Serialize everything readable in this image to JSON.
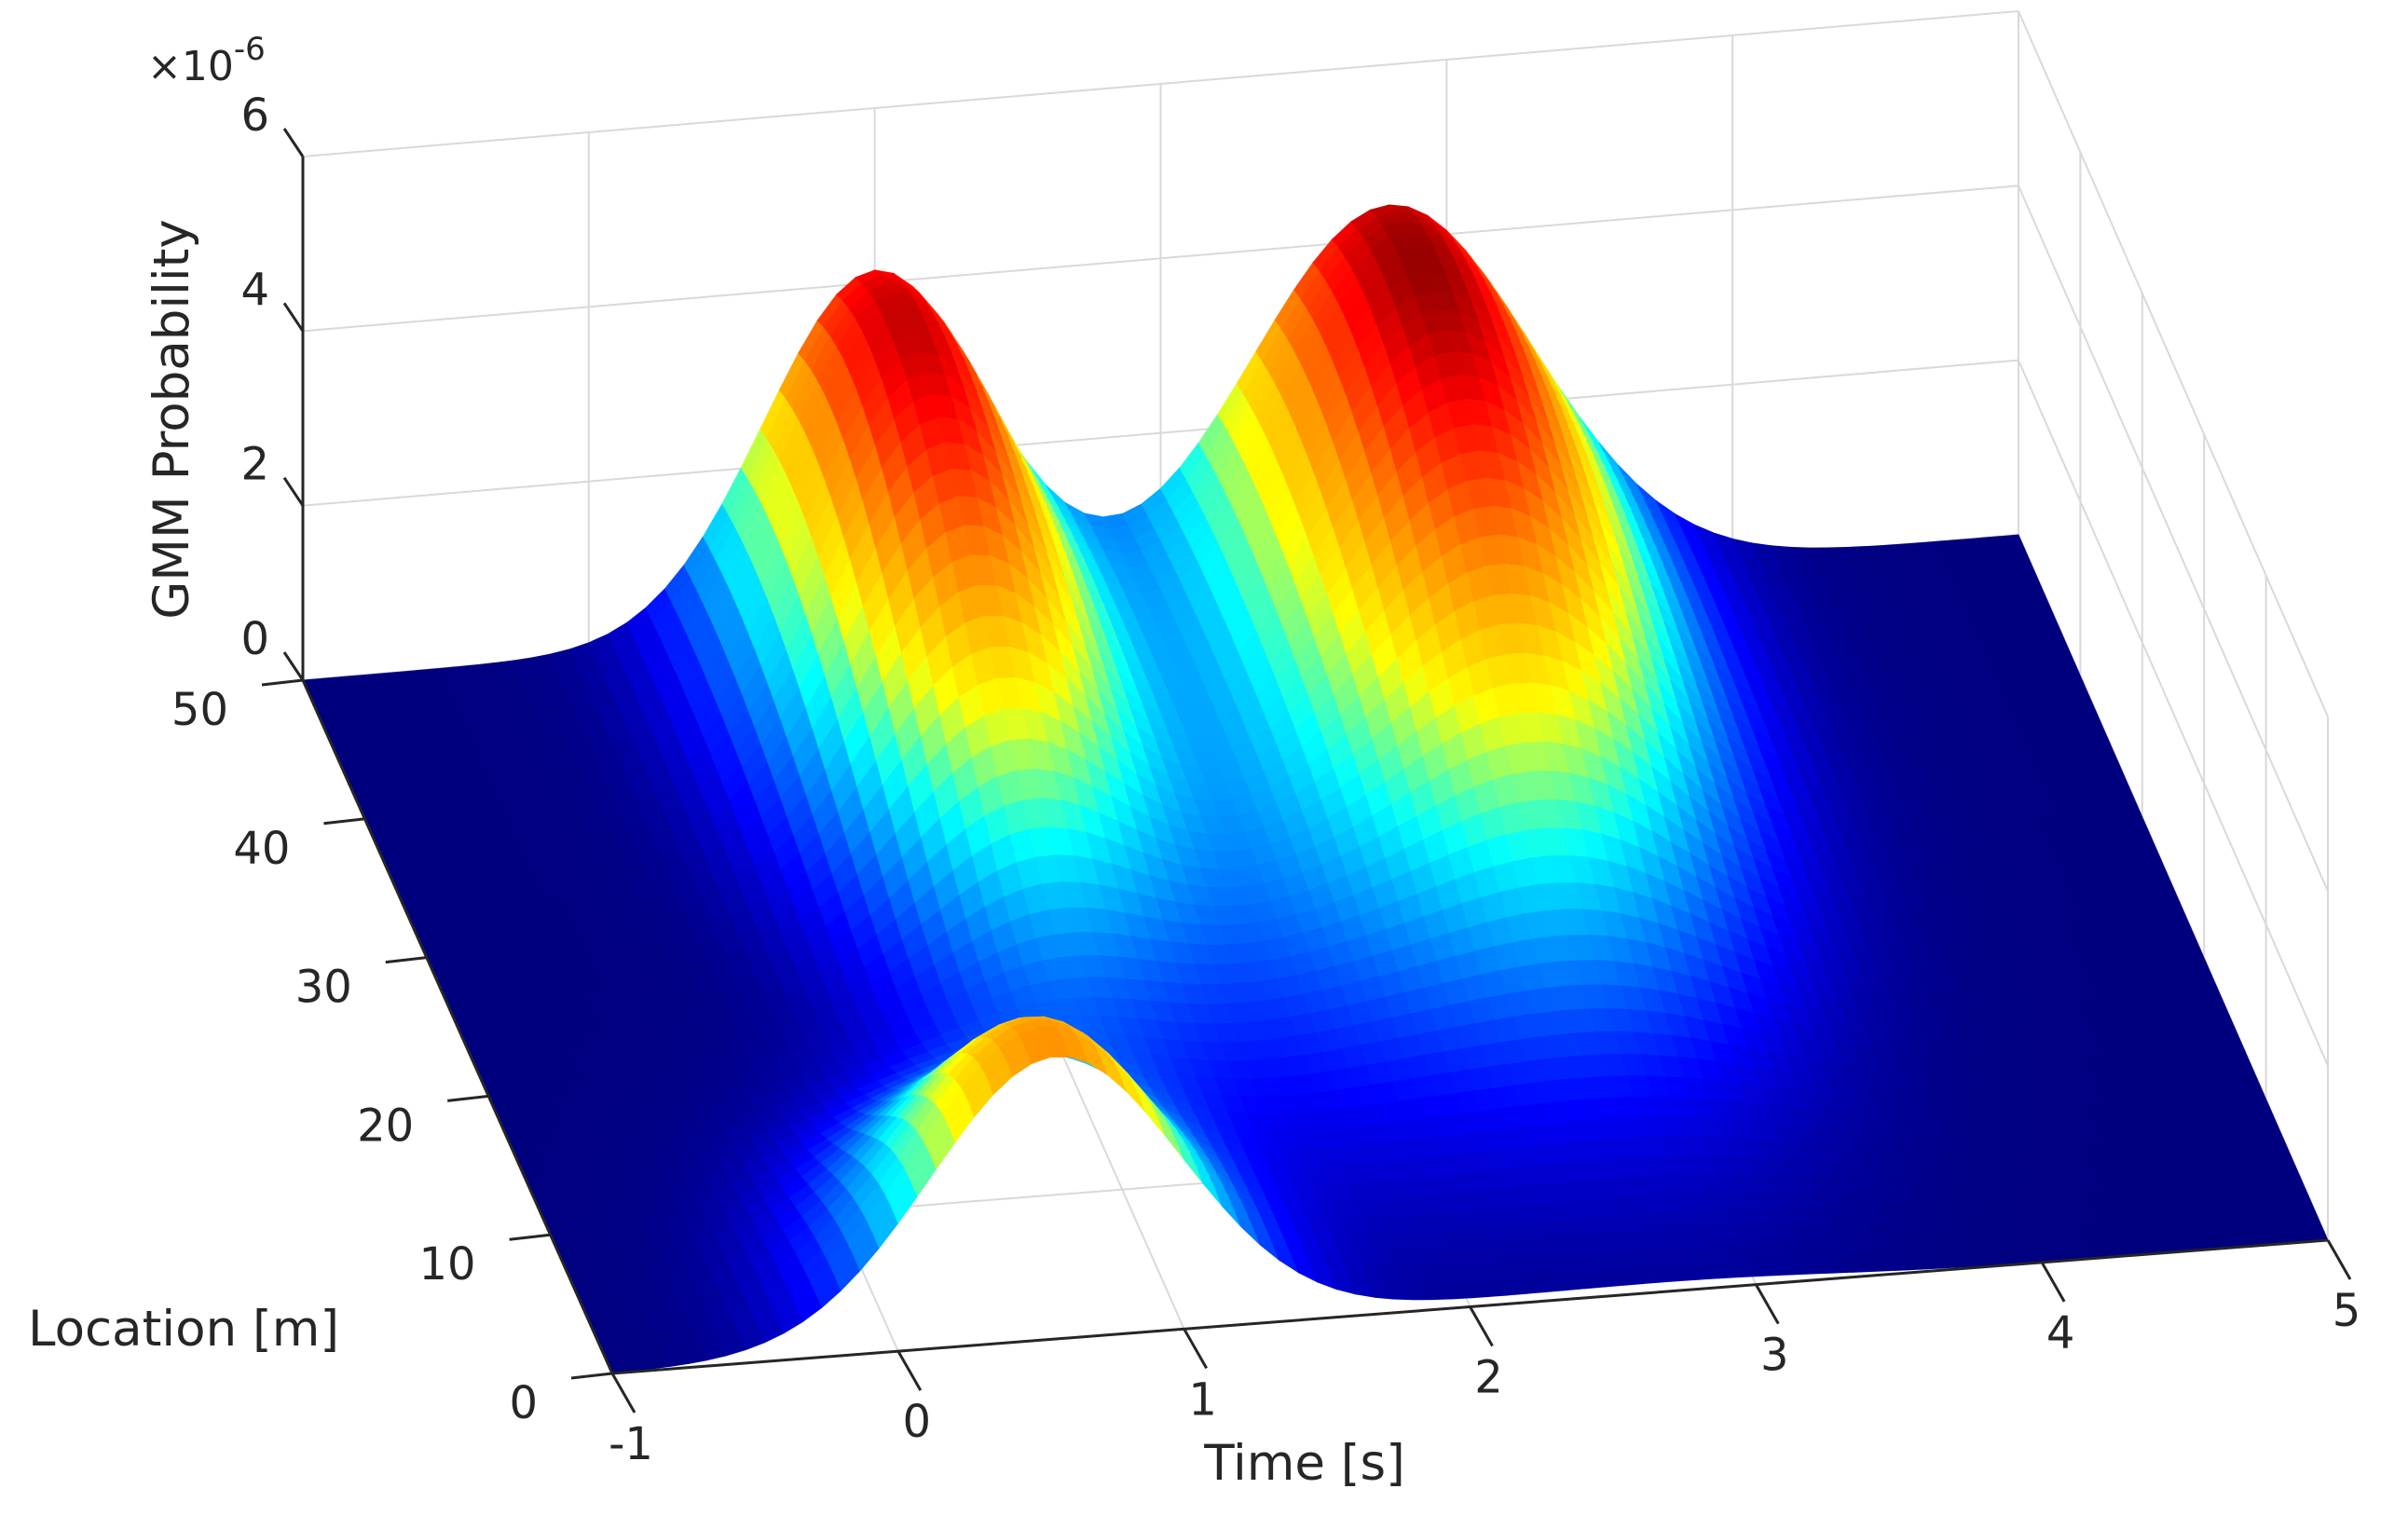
{
  "chart_data": {
    "type": "surface",
    "title": "",
    "xlabel": "Time [s]",
    "ylabel": "Location [m]",
    "zlabel": "GMM Probability",
    "z_exponent": "×10-6",
    "xlim": [
      -1,
      5
    ],
    "ylim": [
      0,
      50
    ],
    "zlim": [
      0,
      6
    ],
    "x_ticks": [
      "-1",
      "0",
      "1",
      "2",
      "3",
      "4",
      "5"
    ],
    "y_ticks": [
      "0",
      "10",
      "20",
      "30",
      "40",
      "50"
    ],
    "z_ticks": [
      "0",
      "2",
      "4",
      "6"
    ],
    "colormap": "jet",
    "grid": true,
    "peaks": [
      {
        "time": 1.0,
        "location": 45,
        "probability": 4.4
      },
      {
        "time": 2.8,
        "location": 45,
        "probability": 4.6
      }
    ],
    "ridge_values_at_location_0": {
      "time": [
        -1,
        -0.5,
        0,
        0.5,
        1,
        1.5,
        2,
        2.5,
        3,
        3.5,
        4,
        4.5,
        5
      ],
      "probability": [
        0.18,
        1.2,
        2.6,
        3.05,
        2.75,
        1.45,
        0.45,
        0.1,
        0.03,
        0.02,
        0.02,
        0.02,
        0.02
      ]
    }
  }
}
